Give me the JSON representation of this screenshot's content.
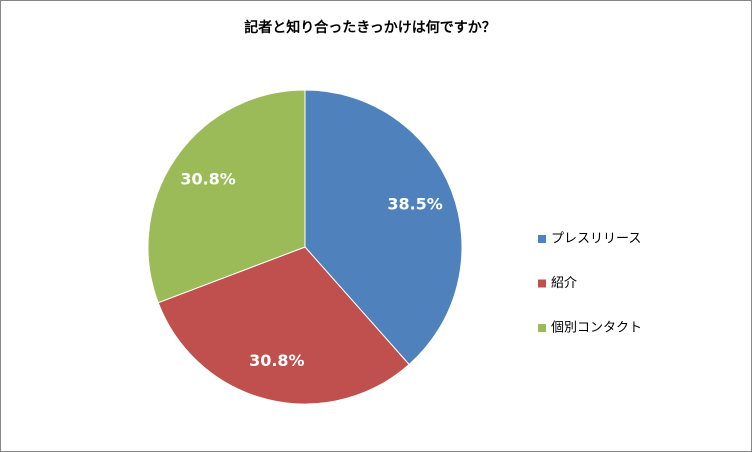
{
  "chart_data": {
    "type": "pie",
    "title": "記者と知り合ったきっかけは何ですか？",
    "categories": [
      "プレスリリース",
      "紹介",
      "個別コンタクト"
    ],
    "values": [
      38.5,
      30.8,
      30.8
    ],
    "value_labels": [
      "38.5%",
      "30.8%",
      "30.8%"
    ],
    "colors": [
      "#4f81bd",
      "#c0504d",
      "#9bbb59"
    ],
    "legend": "right"
  }
}
